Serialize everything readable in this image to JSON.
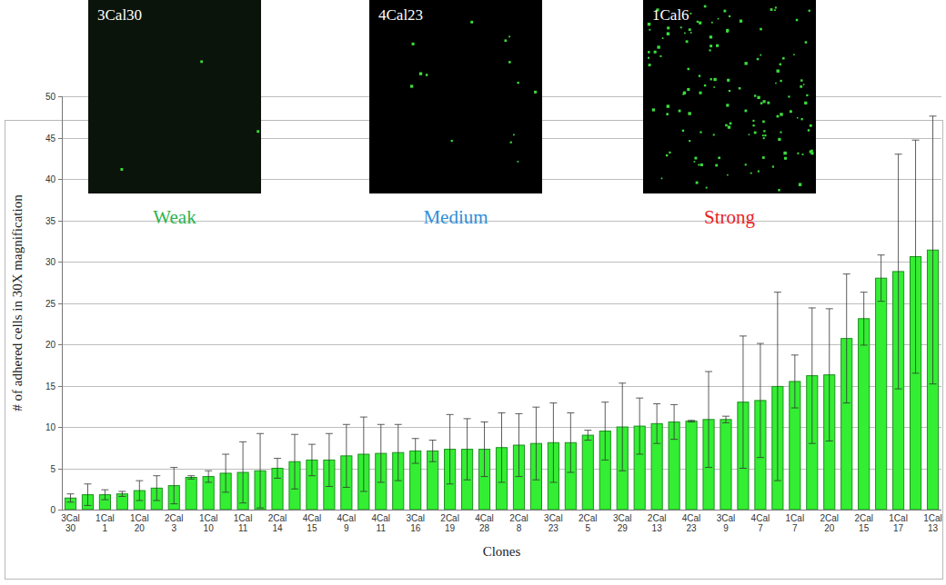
{
  "chart_data": {
    "type": "bar",
    "y_label": "# of adhered cells in 30X magnification",
    "x_label": "Clones",
    "categories": [
      "3Cal 30",
      null,
      "1Cal 1",
      null,
      "1Cal 20",
      null,
      "2Cal 3",
      null,
      "1Cal 10",
      null,
      "1Cal 11",
      null,
      "2Cal 14",
      null,
      "4Cal 15",
      null,
      "4Cal 9",
      null,
      "4Cal 11",
      null,
      "3Cal 16",
      null,
      "2Cal 19",
      null,
      "4Cal 28",
      null,
      "2Cal 8",
      null,
      "3Cal 23",
      null,
      "2Cal 5",
      null,
      "3Cal 29",
      null,
      "2Cal 13",
      null,
      "4Cal 23",
      null,
      "3Cal 9",
      null,
      "4Cal 7",
      null,
      "1Cal 7",
      null,
      "2Cal 20",
      null,
      "2Cal 15",
      null,
      "1Cal 17",
      null,
      "1Cal 13"
    ],
    "values": [
      1.4,
      1.8,
      1.8,
      1.9,
      2.3,
      2.6,
      2.9,
      3.9,
      4.0,
      4.4,
      4.5,
      4.7,
      5.0,
      5.8,
      6.0,
      6.0,
      6.5,
      6.7,
      6.8,
      6.9,
      7.1,
      7.1,
      7.3,
      7.3,
      7.3,
      7.5,
      7.8,
      8.0,
      8.1,
      8.1,
      9.0,
      9.5,
      10.0,
      10.1,
      10.4,
      10.6,
      10.7,
      10.9,
      10.9,
      13.0,
      13.2,
      14.9,
      15.5,
      16.2,
      16.3,
      20.7,
      23.1,
      28.0,
      28.8,
      30.6,
      31.4
    ],
    "errors": [
      0.5,
      1.3,
      0.6,
      0.3,
      1.2,
      1.5,
      2.2,
      0.2,
      0.7,
      2.3,
      3.7,
      4.5,
      1.2,
      3.3,
      1.9,
      3.2,
      3.8,
      4.5,
      3.5,
      3.4,
      1.5,
      1.3,
      4.2,
      3.7,
      3.3,
      4.2,
      3.8,
      4.4,
      4.8,
      3.6,
      0.6,
      3.5,
      5.3,
      3.4,
      2.4,
      2.1,
      0.1,
      5.8,
      0.4,
      8.0,
      6.9,
      11.4,
      3.2,
      8.2,
      8.0,
      7.8,
      3.2,
      2.8,
      14.2,
      14.1,
      16.2
    ],
    "color": "#33ee33",
    "ylim": [
      0,
      50
    ],
    "yticks": [
      0,
      5,
      10,
      15,
      20,
      25,
      30,
      35,
      40,
      45,
      50
    ],
    "grid": true,
    "images": [
      {
        "label": "3Cal30",
        "caption": "Weak",
        "color": "#2bb34a"
      },
      {
        "label": "4Cal23",
        "caption": "Medium",
        "color": "#2f8fd8"
      },
      {
        "label": "1Cal6",
        "caption": "Strong",
        "color": "#e8231f"
      }
    ]
  }
}
